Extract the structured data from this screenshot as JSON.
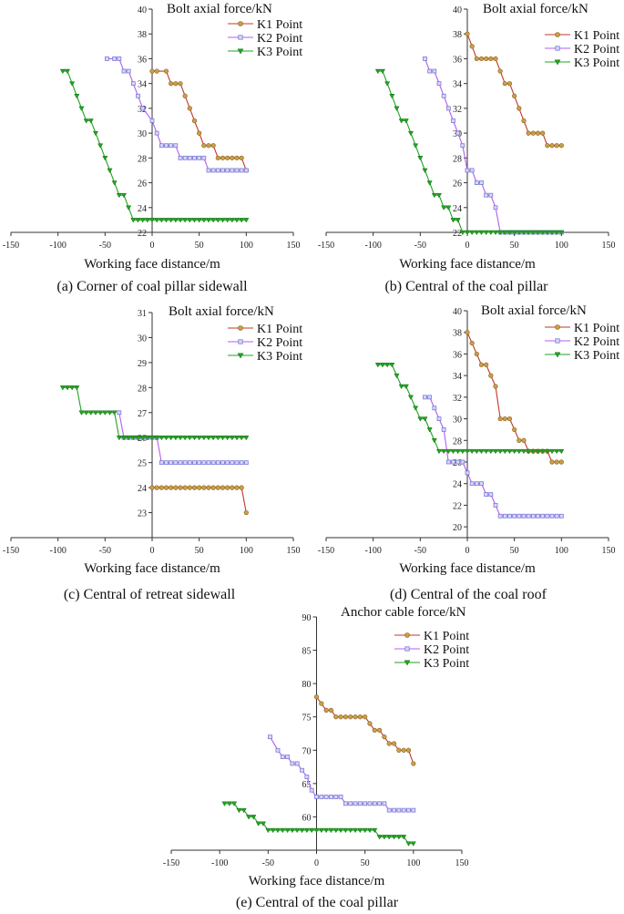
{
  "colors": {
    "k1": "#c0392b",
    "k1_marker": "#c8a04a",
    "k2": "#b45cf0",
    "k2_marker": "#7a7ad6",
    "k3": "#21a321",
    "axis": "#333333"
  },
  "chart_data": [
    {
      "id": "a",
      "type": "line",
      "title": "",
      "ylabel": "Bolt axial force/kN",
      "xlabel": "Working face distance/m",
      "caption": "(a) Corner of coal pillar sidewall",
      "xlim": [
        -150,
        150
      ],
      "xticks": [
        -150,
        -100,
        -50,
        0,
        50,
        100,
        150
      ],
      "ylim": [
        22,
        40
      ],
      "yticks": [
        22,
        24,
        26,
        28,
        30,
        32,
        34,
        36,
        38,
        40
      ],
      "series": [
        {
          "name": "K1 Point",
          "x": [
            0,
            5,
            15,
            20,
            25,
            30,
            35,
            40,
            45,
            50,
            55,
            60,
            65,
            70,
            75,
            80,
            85,
            90,
            95,
            100
          ],
          "y": [
            35,
            35,
            35,
            34,
            34,
            34,
            33,
            32,
            31,
            30,
            29,
            29,
            29,
            28,
            28,
            28,
            28,
            28,
            28,
            27
          ]
        },
        {
          "name": "K2 Point",
          "x": [
            -48,
            -40,
            -35,
            -30,
            -25,
            -20,
            -15,
            -10,
            0,
            5,
            10,
            15,
            20,
            25,
            30,
            35,
            40,
            45,
            50,
            55,
            60,
            65,
            70,
            75,
            80,
            85,
            90,
            95,
            100
          ],
          "y": [
            36,
            36,
            36,
            35,
            35,
            34,
            33,
            32,
            31,
            30,
            29,
            29,
            29,
            29,
            28,
            28,
            28,
            28,
            28,
            28,
            27,
            27,
            27,
            27,
            27,
            27,
            27,
            27,
            27
          ]
        },
        {
          "name": "K3 Point",
          "x": [
            -95,
            -90,
            -85,
            -80,
            -75,
            -70,
            -65,
            -60,
            -55,
            -50,
            -45,
            -40,
            -35,
            -30,
            -25,
            -20,
            -15,
            -10,
            -5,
            0,
            5,
            10,
            15,
            20,
            25,
            30,
            35,
            40,
            45,
            50,
            55,
            60,
            65,
            70,
            75,
            80,
            85,
            90,
            95,
            100
          ],
          "y": [
            35,
            35,
            34,
            33,
            32,
            31,
            31,
            30,
            29,
            28,
            27,
            26,
            25,
            25,
            24,
            23,
            23,
            23,
            23,
            23,
            23,
            23,
            23,
            23,
            23,
            23,
            23,
            23,
            23,
            23,
            23,
            23,
            23,
            23,
            23,
            23,
            23,
            23,
            23,
            23
          ]
        }
      ]
    },
    {
      "id": "b",
      "type": "line",
      "title": "",
      "ylabel": "Bolt axial force/kN",
      "xlabel": "Working face distance/m",
      "caption": "(b) Central of the coal pillar",
      "xlim": [
        -150,
        150
      ],
      "xticks": [
        -150,
        -100,
        -50,
        0,
        50,
        100,
        150
      ],
      "ylim": [
        22,
        40
      ],
      "yticks": [
        22,
        24,
        26,
        28,
        30,
        32,
        34,
        36,
        38,
        40
      ],
      "series": [
        {
          "name": "K1 Point",
          "x": [
            0,
            5,
            10,
            15,
            20,
            25,
            30,
            35,
            40,
            45,
            50,
            55,
            60,
            65,
            70,
            75,
            80,
            85,
            90,
            95,
            100
          ],
          "y": [
            38,
            37,
            36,
            36,
            36,
            36,
            36,
            35,
            34,
            34,
            33,
            32,
            31,
            30,
            30,
            30,
            30,
            29,
            29,
            29,
            29
          ]
        },
        {
          "name": "K2 Point",
          "x": [
            -45,
            -40,
            -35,
            -30,
            -25,
            -20,
            -15,
            -10,
            -5,
            0,
            5,
            10,
            15,
            20,
            25,
            30,
            35,
            40,
            45,
            50,
            55,
            60,
            65,
            70,
            75,
            80,
            85,
            90,
            95,
            100
          ],
          "y": [
            36,
            35,
            35,
            34,
            33,
            32,
            31,
            30,
            29,
            27,
            27,
            26,
            26,
            25,
            25,
            24,
            22,
            22,
            22,
            22,
            22,
            22,
            22,
            22,
            22,
            22,
            22,
            22,
            22,
            22
          ]
        },
        {
          "name": "K3 Point",
          "x": [
            -95,
            -90,
            -85,
            -80,
            -75,
            -70,
            -65,
            -60,
            -55,
            -50,
            -45,
            -40,
            -35,
            -30,
            -25,
            -20,
            -15,
            -10,
            -5,
            0,
            5,
            10,
            15,
            20,
            25,
            30,
            35,
            40,
            45,
            50,
            55,
            60,
            65,
            70,
            75,
            80,
            85,
            90,
            95,
            100
          ],
          "y": [
            35,
            35,
            34,
            33,
            32,
            31,
            31,
            30,
            29,
            28,
            27,
            26,
            25,
            25,
            24,
            24,
            23,
            23,
            22,
            22,
            22,
            22,
            22,
            22,
            22,
            22,
            22,
            22,
            22,
            22,
            22,
            22,
            22,
            22,
            22,
            22,
            22,
            22,
            22,
            22
          ]
        }
      ]
    },
    {
      "id": "c",
      "type": "line",
      "title": "",
      "ylabel": "Bolt axial force/kN",
      "xlabel": "Working face distance/m",
      "caption": "(c) Central of retreat sidewall",
      "xlim": [
        -150,
        150
      ],
      "xticks": [
        -150,
        -100,
        -50,
        0,
        50,
        100,
        150
      ],
      "ylim": [
        22,
        31
      ],
      "yticks": [
        23,
        24,
        25,
        26,
        27,
        28,
        29,
        30,
        31
      ],
      "series": [
        {
          "name": "K1 Point",
          "x": [
            0,
            5,
            10,
            15,
            20,
            25,
            30,
            35,
            40,
            45,
            50,
            55,
            60,
            65,
            70,
            75,
            80,
            85,
            90,
            95,
            100
          ],
          "y": [
            24,
            24,
            24,
            24,
            24,
            24,
            24,
            24,
            24,
            24,
            24,
            24,
            24,
            24,
            24,
            24,
            24,
            24,
            24,
            24,
            23
          ]
        },
        {
          "name": "K2 Point",
          "x": [
            -35,
            -30,
            -25,
            -20,
            -15,
            -10,
            -5,
            0,
            5,
            10,
            15,
            20,
            25,
            30,
            35,
            40,
            45,
            50,
            55,
            60,
            65,
            70,
            75,
            80,
            85,
            90,
            95,
            100
          ],
          "y": [
            27,
            26,
            26,
            26,
            26,
            26,
            26,
            26,
            26,
            25,
            25,
            25,
            25,
            25,
            25,
            25,
            25,
            25,
            25,
            25,
            25,
            25,
            25,
            25,
            25,
            25,
            25,
            25
          ]
        },
        {
          "name": "K3 Point",
          "x": [
            -95,
            -90,
            -85,
            -80,
            -75,
            -70,
            -65,
            -60,
            -55,
            -50,
            -45,
            -40,
            -35,
            -30,
            -25,
            -20,
            -15,
            -10,
            -5,
            0,
            5,
            10,
            15,
            20,
            25,
            30,
            35,
            40,
            45,
            50,
            55,
            60,
            65,
            70,
            75,
            80,
            85,
            90,
            95,
            100
          ],
          "y": [
            28,
            28,
            28,
            28,
            27,
            27,
            27,
            27,
            27,
            27,
            27,
            27,
            26,
            26,
            26,
            26,
            26,
            26,
            26,
            26,
            26,
            26,
            26,
            26,
            26,
            26,
            26,
            26,
            26,
            26,
            26,
            26,
            26,
            26,
            26,
            26,
            26,
            26,
            26,
            26
          ]
        }
      ]
    },
    {
      "id": "d",
      "type": "line",
      "title": "",
      "ylabel": "Bolt axial force/kN",
      "xlabel": "Working face distance/m",
      "caption": "(d) Central of the coal roof",
      "xlim": [
        -150,
        150
      ],
      "xticks": [
        -150,
        -100,
        -50,
        0,
        50,
        100,
        150
      ],
      "ylim": [
        19,
        40
      ],
      "yticks": [
        20,
        22,
        24,
        26,
        28,
        30,
        32,
        34,
        36,
        38,
        40
      ],
      "series": [
        {
          "name": "K1 Point",
          "x": [
            0,
            5,
            10,
            15,
            20,
            25,
            30,
            35,
            40,
            45,
            50,
            55,
            60,
            65,
            70,
            75,
            80,
            85,
            90,
            95,
            100
          ],
          "y": [
            38,
            37,
            36,
            35,
            35,
            34,
            33,
            30,
            30,
            30,
            29,
            28,
            28,
            27,
            27,
            27,
            27,
            27,
            26,
            26,
            26
          ]
        },
        {
          "name": "K2 Point",
          "x": [
            -45,
            -40,
            -35,
            -30,
            -25,
            -20,
            -15,
            -10,
            -5,
            0,
            5,
            10,
            15,
            20,
            25,
            30,
            35,
            40,
            45,
            50,
            55,
            60,
            65,
            70,
            75,
            80,
            85,
            90,
            95,
            100
          ],
          "y": [
            32,
            32,
            31,
            30,
            29,
            26,
            26,
            26,
            26,
            25,
            24,
            24,
            24,
            23,
            23,
            22,
            21,
            21,
            21,
            21,
            21,
            21,
            21,
            21,
            21,
            21,
            21,
            21,
            21,
            21
          ]
        },
        {
          "name": "K3 Point",
          "x": [
            -95,
            -90,
            -85,
            -80,
            -75,
            -70,
            -65,
            -60,
            -55,
            -50,
            -45,
            -40,
            -35,
            -30,
            -25,
            -20,
            -15,
            -10,
            -5,
            0,
            5,
            10,
            15,
            20,
            25,
            30,
            35,
            40,
            45,
            50,
            55,
            60,
            65,
            70,
            75,
            80,
            85,
            90,
            95,
            100
          ],
          "y": [
            35,
            35,
            35,
            35,
            34,
            33,
            33,
            32,
            31,
            30,
            30,
            29,
            28,
            27,
            27,
            27,
            27,
            27,
            27,
            27,
            27,
            27,
            27,
            27,
            27,
            27,
            27,
            27,
            27,
            27,
            27,
            27,
            27,
            27,
            27,
            27,
            27,
            27,
            27,
            27
          ]
        }
      ]
    },
    {
      "id": "e",
      "type": "line",
      "title": "",
      "ylabel": "Anchor cable force/kN",
      "xlabel": "Working face distance/m",
      "caption": "(e) Central of the coal pillar",
      "xlim": [
        -150,
        150
      ],
      "xticks": [
        -150,
        -100,
        -50,
        0,
        50,
        100,
        150
      ],
      "ylim": [
        55,
        90
      ],
      "yticks": [
        60,
        65,
        70,
        75,
        80,
        85,
        90
      ],
      "series": [
        {
          "name": "K1 Point",
          "x": [
            0,
            5,
            10,
            15,
            20,
            25,
            30,
            35,
            40,
            45,
            50,
            55,
            60,
            65,
            70,
            75,
            80,
            85,
            90,
            95,
            100
          ],
          "y": [
            78,
            77,
            76,
            76,
            75,
            75,
            75,
            75,
            75,
            75,
            75,
            74,
            73,
            73,
            72,
            71,
            71,
            70,
            70,
            70,
            68
          ]
        },
        {
          "name": "K2 Point",
          "x": [
            -48,
            -40,
            -35,
            -30,
            -25,
            -20,
            -15,
            -10,
            -5,
            0,
            5,
            10,
            15,
            20,
            25,
            30,
            35,
            40,
            45,
            50,
            55,
            60,
            65,
            70,
            75,
            80,
            85,
            90,
            95,
            100
          ],
          "y": [
            72,
            70,
            69,
            69,
            68,
            68,
            67,
            66,
            64,
            63,
            63,
            63,
            63,
            63,
            63,
            62,
            62,
            62,
            62,
            62,
            62,
            62,
            62,
            62,
            61,
            61,
            61,
            61,
            61,
            61
          ]
        },
        {
          "name": "K3 Point",
          "x": [
            -95,
            -90,
            -85,
            -80,
            -75,
            -70,
            -65,
            -60,
            -55,
            -50,
            -45,
            -40,
            -35,
            -30,
            -25,
            -20,
            -15,
            -10,
            -5,
            0,
            5,
            10,
            15,
            20,
            25,
            30,
            35,
            40,
            45,
            50,
            55,
            60,
            65,
            70,
            75,
            80,
            85,
            90,
            95,
            100
          ],
          "y": [
            62,
            62,
            62,
            61,
            61,
            60,
            60,
            59,
            59,
            58,
            58,
            58,
            58,
            58,
            58,
            58,
            58,
            58,
            58,
            58,
            58,
            58,
            58,
            58,
            58,
            58,
            58,
            58,
            58,
            58,
            58,
            58,
            57,
            57,
            57,
            57,
            57,
            57,
            56,
            56
          ]
        }
      ]
    }
  ]
}
